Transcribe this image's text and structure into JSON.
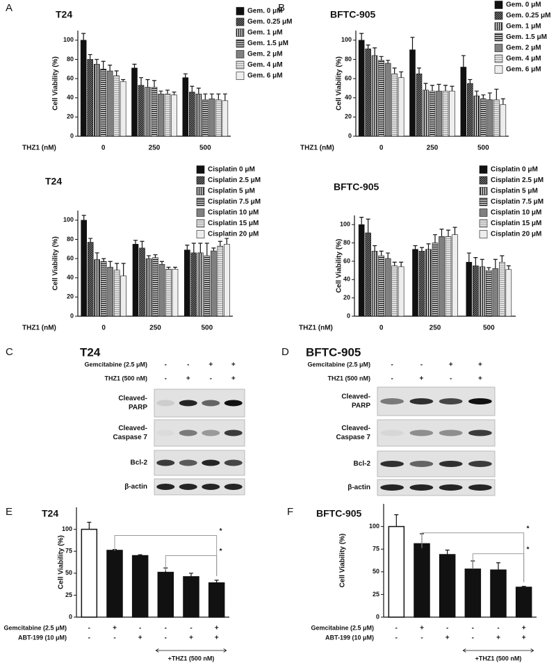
{
  "chart_data": [
    {
      "type": "grouped_bar",
      "panel_label": "A",
      "title": "T24",
      "y_label": "Cell Viability (%)",
      "x_label": "THZ1 (nM)",
      "categories": [
        "0",
        "250",
        "500"
      ],
      "ylim": [
        0,
        110
      ],
      "yticks": [
        0,
        20,
        40,
        60,
        80,
        100
      ],
      "series": [
        {
          "name": "Gem. 0 μM",
          "color": "#111111",
          "pattern": "solid",
          "values": [
            100,
            71,
            61
          ],
          "errors": [
            7,
            4,
            4
          ]
        },
        {
          "name": "Gem. 0.25 μM",
          "color": "#111111",
          "pattern": "diagonal",
          "values": [
            80,
            53,
            46
          ],
          "errors": [
            5,
            8,
            6
          ]
        },
        {
          "name": "Gem. 1 μM",
          "color": "#111111",
          "pattern": "vertical",
          "values": [
            75,
            51,
            44
          ],
          "errors": [
            5,
            8,
            6
          ]
        },
        {
          "name": "Gem. 1.5 μM",
          "color": "#111111",
          "pattern": "horizontal",
          "values": [
            70,
            51,
            38
          ],
          "errors": [
            8,
            7,
            6
          ]
        },
        {
          "name": "Gem. 2 μM",
          "color": "#808080",
          "pattern": "solid",
          "values": [
            68,
            44,
            39
          ],
          "errors": [
            6,
            3,
            5
          ]
        },
        {
          "name": "Gem. 4 μM",
          "color": "#a0a0a0",
          "pattern": "horizontal",
          "values": [
            63,
            44,
            38
          ],
          "errors": [
            5,
            4,
            6
          ]
        },
        {
          "name": "Gem. 6 μM",
          "color": "#eeeeee",
          "pattern": "solid",
          "values": [
            57,
            43,
            37
          ],
          "errors": [
            2,
            3,
            7
          ]
        }
      ]
    },
    {
      "type": "grouped_bar",
      "panel_label": "B",
      "title": "BFTC-905",
      "y_label": "Cell Viability (%)",
      "x_label": "THZ1 (nM)",
      "categories": [
        "0",
        "250",
        "500"
      ],
      "ylim": [
        0,
        110
      ],
      "yticks": [
        0,
        20,
        40,
        60,
        80,
        100
      ],
      "series": [
        {
          "name": "Gem. 0 μM",
          "color": "#111111",
          "pattern": "solid",
          "values": [
            100,
            90,
            72
          ],
          "errors": [
            7,
            13,
            12
          ]
        },
        {
          "name": "Gem. 0.25 μM",
          "color": "#111111",
          "pattern": "diagonal",
          "values": [
            91,
            65,
            55
          ],
          "errors": [
            4,
            6,
            4
          ]
        },
        {
          "name": "Gem. 1 μM",
          "color": "#111111",
          "pattern": "vertical",
          "values": [
            84,
            48,
            42
          ],
          "errors": [
            8,
            7,
            5
          ]
        },
        {
          "name": "Gem. 1.5 μM",
          "color": "#111111",
          "pattern": "horizontal",
          "values": [
            79,
            47,
            39
          ],
          "errors": [
            4,
            6,
            4
          ]
        },
        {
          "name": "Gem. 2 μM",
          "color": "#808080",
          "pattern": "solid",
          "values": [
            76,
            47,
            38
          ],
          "errors": [
            3,
            7,
            7
          ]
        },
        {
          "name": "Gem. 4 μM",
          "color": "#a0a0a0",
          "pattern": "horizontal",
          "values": [
            65,
            47,
            38
          ],
          "errors": [
            6,
            6,
            11
          ]
        },
        {
          "name": "Gem. 6 μM",
          "color": "#eeeeee",
          "pattern": "solid",
          "values": [
            61,
            47,
            33
          ],
          "errors": [
            6,
            5,
            6
          ]
        }
      ]
    },
    {
      "type": "grouped_bar",
      "title": "T24",
      "y_label": "Cell Viability (%)",
      "x_label": "THZ1 (nM)",
      "categories": [
        "0",
        "250",
        "500"
      ],
      "ylim": [
        0,
        110
      ],
      "yticks": [
        0,
        20,
        40,
        60,
        80,
        100
      ],
      "series": [
        {
          "name": "Cisplatin 0 μM",
          "color": "#111111",
          "pattern": "solid",
          "values": [
            100,
            75,
            69
          ],
          "errors": [
            5,
            4,
            5
          ]
        },
        {
          "name": "Cisplatin 2.5 μM",
          "color": "#111111",
          "pattern": "diagonal",
          "values": [
            77,
            71,
            66
          ],
          "errors": [
            4,
            7,
            10
          ]
        },
        {
          "name": "Cisplatin 5 μM",
          "color": "#111111",
          "pattern": "vertical",
          "values": [
            59,
            60,
            66
          ],
          "errors": [
            7,
            3,
            10
          ]
        },
        {
          "name": "Cisplatin 7.5 μM",
          "color": "#111111",
          "pattern": "horizontal",
          "values": [
            57,
            61,
            63
          ],
          "errors": [
            3,
            3,
            13
          ]
        },
        {
          "name": "Cisplatin 10 μM",
          "color": "#808080",
          "pattern": "solid",
          "values": [
            51,
            54,
            68
          ],
          "errors": [
            6,
            3,
            3
          ]
        },
        {
          "name": "Cisplatin 15 μM",
          "color": "#a0a0a0",
          "pattern": "horizontal",
          "values": [
            48,
            49,
            73
          ],
          "errors": [
            7,
            2,
            5
          ]
        },
        {
          "name": "Cisplatin 20 μM",
          "color": "#eeeeee",
          "pattern": "solid",
          "values": [
            42,
            49,
            75
          ],
          "errors": [
            13,
            2,
            6
          ]
        }
      ]
    },
    {
      "type": "grouped_bar",
      "title": "BFTC-905",
      "y_label": "Cell Viability (%)",
      "x_label": "THZ1 (nM)",
      "categories": [
        "0",
        "250",
        "500"
      ],
      "ylim": [
        0,
        110
      ],
      "yticks": [
        0,
        20,
        40,
        60,
        80,
        100
      ],
      "series": [
        {
          "name": "Cisplatin 0 μM",
          "color": "#111111",
          "pattern": "solid",
          "values": [
            100,
            73,
            59
          ],
          "errors": [
            8,
            4,
            10
          ]
        },
        {
          "name": "Cisplatin 2.5 μM",
          "color": "#111111",
          "pattern": "diagonal",
          "values": [
            91,
            71,
            55
          ],
          "errors": [
            15,
            4,
            9
          ]
        },
        {
          "name": "Cisplatin 5 μM",
          "color": "#111111",
          "pattern": "vertical",
          "values": [
            71,
            73,
            54
          ],
          "errors": [
            6,
            6,
            8
          ]
        },
        {
          "name": "Cisplatin 7.5 μM",
          "color": "#111111",
          "pattern": "horizontal",
          "values": [
            66,
            80,
            50
          ],
          "errors": [
            5,
            9,
            3
          ]
        },
        {
          "name": "Cisplatin 10 μM",
          "color": "#808080",
          "pattern": "solid",
          "values": [
            63,
            87,
            52
          ],
          "errors": [
            6,
            8,
            10
          ]
        },
        {
          "name": "Cisplatin 15 μM",
          "color": "#a0a0a0",
          "pattern": "horizontal",
          "values": [
            55,
            87,
            59
          ],
          "errors": [
            4,
            7,
            7
          ]
        },
        {
          "name": "Cisplatin 20 μM",
          "color": "#eeeeee",
          "pattern": "solid",
          "values": [
            54,
            89,
            51
          ],
          "errors": [
            5,
            8,
            4
          ]
        }
      ]
    },
    {
      "type": "bar",
      "panel_label": "E",
      "title": "T24",
      "y_label": "Cell Viability (%)",
      "values": [
        100,
        76,
        70,
        51,
        46,
        39
      ],
      "errors": [
        8,
        1,
        1,
        5,
        4,
        3
      ],
      "colors": [
        "#ffffff",
        "#111111",
        "#111111",
        "#111111",
        "#111111",
        "#111111"
      ],
      "ylim": [
        0,
        125
      ],
      "yticks": [
        0,
        25,
        50,
        75,
        100
      ],
      "conditions": [
        {
          "label": "Gemcitabine (2.5 μM)",
          "signs": [
            "-",
            "+",
            "-",
            "-",
            "-",
            "+"
          ]
        },
        {
          "label": "ABT-199 (10 μM)",
          "signs": [
            "-",
            "-",
            "+",
            "-",
            "+",
            "+"
          ]
        }
      ],
      "bracket_label": "+THZ1 (500 nM)",
      "annotations": [
        "*",
        "*"
      ]
    },
    {
      "type": "bar",
      "panel_label": "F",
      "title": "BFTC-905",
      "y_label": "Cell Viability (%)",
      "values": [
        100,
        81,
        69,
        53,
        52,
        33
      ],
      "errors": [
        13,
        11,
        5,
        9,
        8,
        1
      ],
      "colors": [
        "#ffffff",
        "#111111",
        "#111111",
        "#111111",
        "#111111",
        "#111111"
      ],
      "ylim": [
        0,
        125
      ],
      "yticks": [
        0,
        25,
        50,
        75,
        100
      ],
      "conditions": [
        {
          "label": "Gemcitabine (2.5 μM)",
          "signs": [
            "-",
            "+",
            "-",
            "-",
            "-",
            "+"
          ]
        },
        {
          "label": "ABT-199 (10 μM)",
          "signs": [
            "-",
            "-",
            "+",
            "-",
            "+",
            "+"
          ]
        }
      ],
      "bracket_label": "+THZ1 (500 nM)",
      "annotations": [
        "*",
        "*"
      ]
    }
  ],
  "blots": [
    {
      "panel_label": "C",
      "title": "T24",
      "conditions": [
        {
          "label": "Gemcitabine (2.5 μM)",
          "signs": [
            "-",
            "-",
            "+",
            "+"
          ]
        },
        {
          "label": "THZ1 (500 nM)",
          "signs": [
            "-",
            "+",
            "-",
            "+"
          ]
        }
      ],
      "rows": [
        {
          "label": [
            "Cleaved-",
            "PARP"
          ]
        },
        {
          "label": [
            "Cleaved-",
            "Caspase 7"
          ]
        },
        {
          "label": [
            "Bcl-2"
          ]
        },
        {
          "label": [
            "β-actin"
          ]
        }
      ]
    },
    {
      "panel_label": "D",
      "title": "BFTC-905",
      "conditions": [
        {
          "label": "Gemcitabine (2.5 μM)",
          "signs": [
            "-",
            "-",
            "+",
            "+"
          ]
        },
        {
          "label": "THZ1 (500 nM)",
          "signs": [
            "-",
            "+",
            "-",
            "+"
          ]
        }
      ],
      "rows": [
        {
          "label": [
            "Cleaved-",
            "PARP"
          ]
        },
        {
          "label": [
            "Cleaved-",
            "Caspase 7"
          ]
        },
        {
          "label": [
            "Bcl-2"
          ]
        },
        {
          "label": [
            "β-actin"
          ]
        }
      ]
    }
  ]
}
